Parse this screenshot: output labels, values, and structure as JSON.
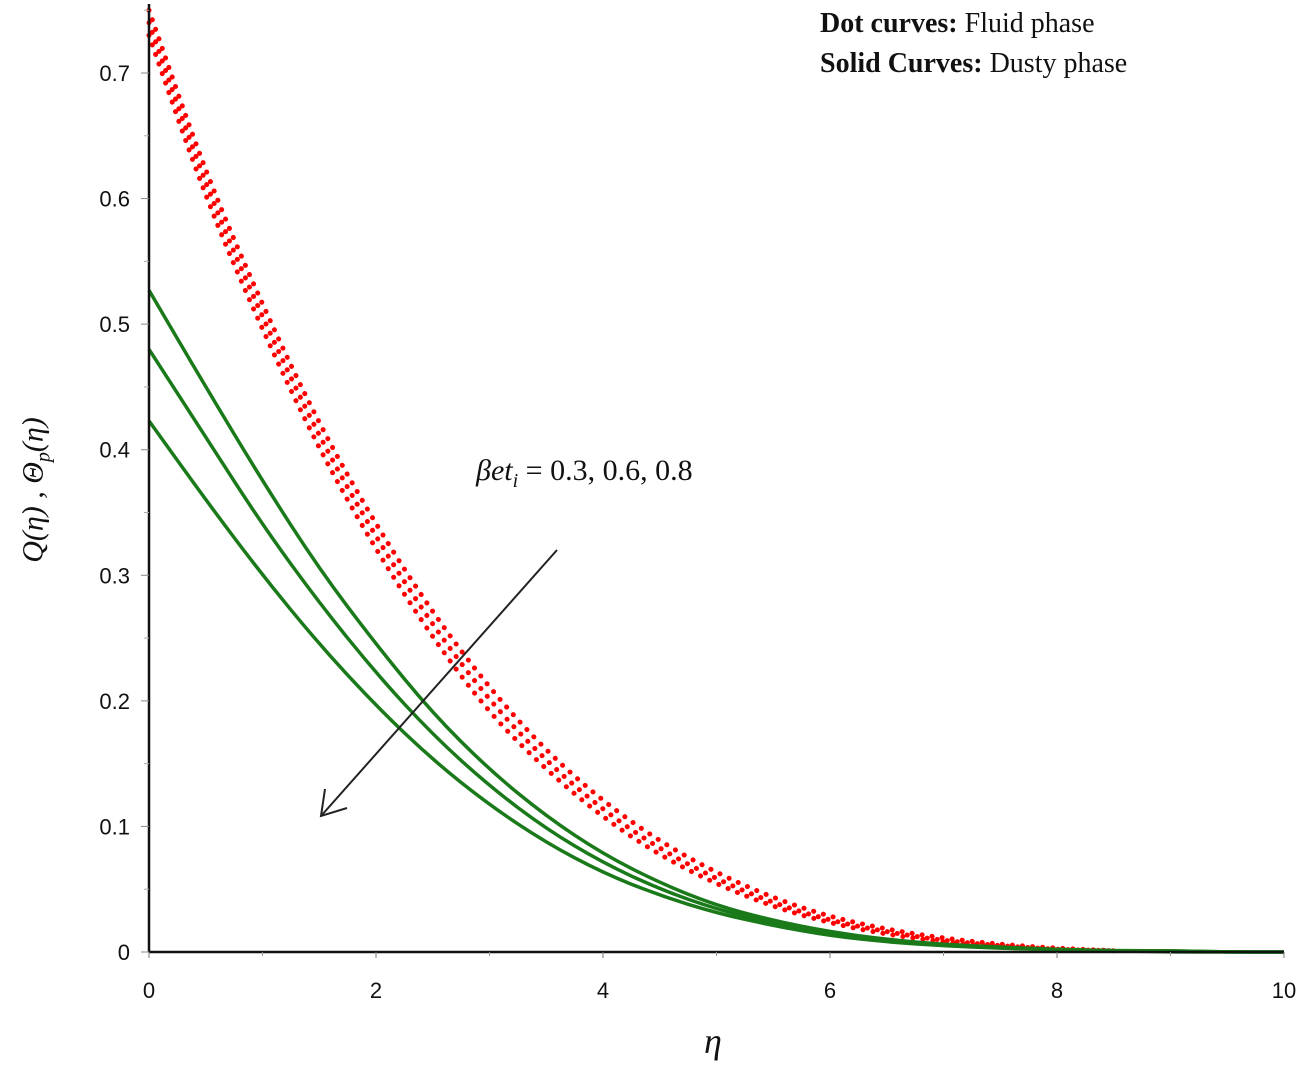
{
  "chart_data": {
    "type": "line",
    "title": "",
    "xlabel": "η",
    "ylabel": "Q(η), Θp(η)",
    "xlim": [
      0,
      10
    ],
    "ylim": [
      0,
      0.76
    ],
    "x_ticks": [
      0,
      2,
      4,
      6,
      8,
      10
    ],
    "y_ticks": [
      0,
      0.1,
      0.2,
      0.3,
      0.4,
      0.5,
      0.6,
      0.7
    ],
    "grid": false,
    "legend_text": [
      {
        "bold": "Dot curves:",
        "normal": "Fluid phase"
      },
      {
        "bold": "Solid Curves:",
        "normal": "Dusty phase"
      }
    ],
    "annotation": {
      "param": "βet",
      "subscript": "i",
      "values": "=0.3, 0.6, 0.8",
      "arrow": "points toward decreasing values"
    },
    "x": [
      0,
      0.5,
      1,
      1.5,
      2,
      2.5,
      3,
      3.5,
      4,
      4.5,
      5,
      5.5,
      6,
      6.5,
      7,
      7.5,
      8,
      8.5,
      9,
      9.5,
      10
    ],
    "series": [
      {
        "name": "Fluid phase, βet_i=0.3",
        "style": "dotted",
        "color": "#ff0000",
        "values": [
          0.75,
          0.62,
          0.515,
          0.42,
          0.34,
          0.27,
          0.21,
          0.16,
          0.12,
          0.088,
          0.063,
          0.043,
          0.028,
          0.018,
          0.011,
          0.006,
          0.003,
          0.001,
          null,
          null,
          null
        ]
      },
      {
        "name": "Fluid phase, βet_i=0.6",
        "style": "dotted",
        "color": "#ff0000",
        "values": [
          0.74,
          0.61,
          0.505,
          0.41,
          0.33,
          0.26,
          0.2,
          0.152,
          0.113,
          0.082,
          0.058,
          0.039,
          0.025,
          0.016,
          0.009,
          0.005,
          0.002,
          0.001,
          null,
          null,
          null
        ]
      },
      {
        "name": "Fluid phase, βet_i=0.8",
        "style": "dotted",
        "color": "#ff0000",
        "values": [
          0.73,
          0.6,
          0.495,
          0.4,
          0.32,
          0.25,
          0.19,
          0.145,
          0.107,
          0.077,
          0.054,
          0.036,
          0.023,
          0.014,
          0.008,
          0.004,
          0.002,
          0.001,
          null,
          null,
          null
        ]
      },
      {
        "name": "Dusty phase, βet_i=0.3",
        "style": "solid",
        "color": "#1a7a1a",
        "values": [
          0.527,
          0.45,
          0.375,
          0.305,
          0.245,
          0.19,
          0.145,
          0.108,
          0.078,
          0.055,
          0.037,
          0.025,
          0.016,
          0.01,
          0.006,
          0.004,
          0.002,
          0.001,
          0.001,
          0.0,
          0.0
        ]
      },
      {
        "name": "Dusty phase, βet_i=0.6",
        "style": "solid",
        "color": "#1a7a1a",
        "values": [
          0.48,
          0.41,
          0.34,
          0.278,
          0.222,
          0.173,
          0.132,
          0.098,
          0.071,
          0.05,
          0.034,
          0.023,
          0.015,
          0.009,
          0.006,
          0.003,
          0.002,
          0.001,
          0.001,
          0.0,
          0.0
        ]
      },
      {
        "name": "Dusty phase, βet_i=0.8",
        "style": "solid",
        "color": "#1a7a1a",
        "values": [
          0.423,
          0.36,
          0.3,
          0.245,
          0.196,
          0.153,
          0.117,
          0.087,
          0.063,
          0.045,
          0.031,
          0.021,
          0.013,
          0.008,
          0.005,
          0.003,
          0.002,
          0.001,
          0.0,
          0.0,
          0.0
        ]
      }
    ]
  },
  "legend": {
    "line1_bold": "Dot curves:",
    "line1_text": " Fluid phase",
    "line2_bold": "Solid Curves:",
    "line2_text": " Dusty phase"
  },
  "annotation": {
    "param": "βet",
    "sub": "i",
    "values": " = 0.3, 0.6, 0.8"
  },
  "axes": {
    "xlabel": "η",
    "ylabel": "Q(η), Θp(η)"
  }
}
